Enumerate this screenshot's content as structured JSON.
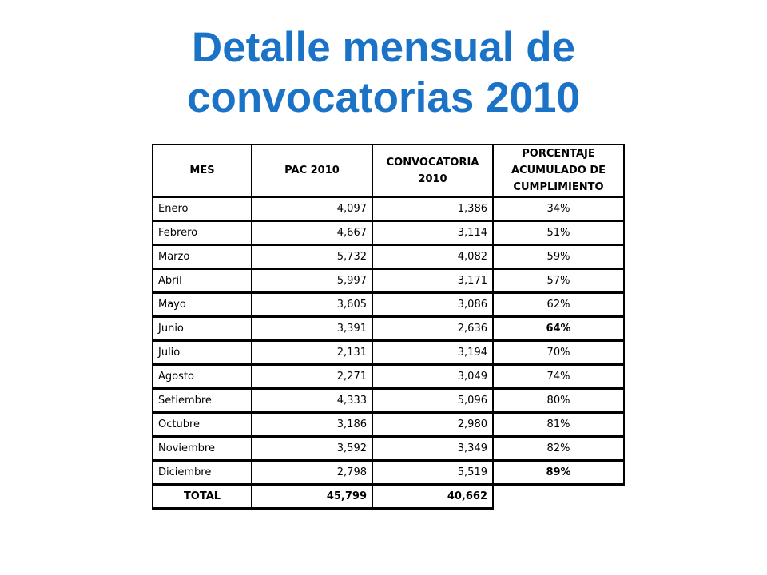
{
  "title": {
    "line1": "Detalle mensual de",
    "line2": "convocatorias 2010"
  },
  "table": {
    "headers": {
      "mes": "MES",
      "pac": "PAC 2010",
      "convocatoria": "CONVOCATORIA 2010",
      "porcentaje": "PORCENTAJE ACUMULADO DE CUMPLIMIENTO"
    },
    "rows": [
      {
        "mes": "Enero",
        "pac": "4,097",
        "convocatoria": "1,386",
        "porcentaje": "34%",
        "bold": false
      },
      {
        "mes": "Febrero",
        "pac": "4,667",
        "convocatoria": "3,114",
        "porcentaje": "51%",
        "bold": false
      },
      {
        "mes": "Marzo",
        "pac": "5,732",
        "convocatoria": "4,082",
        "porcentaje": "59%",
        "bold": false
      },
      {
        "mes": "Abril",
        "pac": "5,997",
        "convocatoria": "3,171",
        "porcentaje": "57%",
        "bold": false
      },
      {
        "mes": "Mayo",
        "pac": "3,605",
        "convocatoria": "3,086",
        "porcentaje": "62%",
        "bold": false
      },
      {
        "mes": "Junio",
        "pac": "3,391",
        "convocatoria": "2,636",
        "porcentaje": "64%",
        "bold": true
      },
      {
        "mes": "Julio",
        "pac": "2,131",
        "convocatoria": "3,194",
        "porcentaje": "70%",
        "bold": false
      },
      {
        "mes": "Agosto",
        "pac": "2,271",
        "convocatoria": "3,049",
        "porcentaje": "74%",
        "bold": false
      },
      {
        "mes": "Setiembre",
        "pac": "4,333",
        "convocatoria": "5,096",
        "porcentaje": "80%",
        "bold": false
      },
      {
        "mes": "Octubre",
        "pac": "3,186",
        "convocatoria": "2,980",
        "porcentaje": "81%",
        "bold": false
      },
      {
        "mes": "Noviembre",
        "pac": "3,592",
        "convocatoria": "3,349",
        "porcentaje": "82%",
        "bold": false
      },
      {
        "mes": "Diciembre",
        "pac": "2,798",
        "convocatoria": "5,519",
        "porcentaje": "89%",
        "bold": true
      }
    ],
    "total": {
      "label": "TOTAL",
      "pac": "45,799",
      "convocatoria": "40,662"
    }
  },
  "colors": {
    "title": "#1a73c6",
    "border": "#000000",
    "background": "#ffffff"
  }
}
